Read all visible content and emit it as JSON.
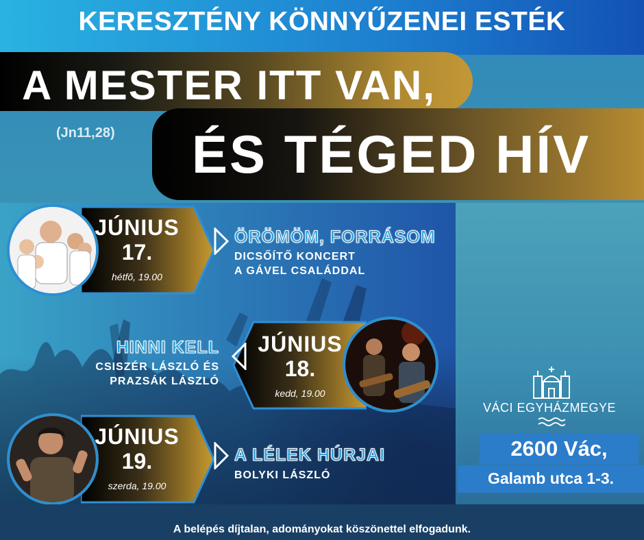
{
  "header": {
    "series_title": "KERESZTÉNY KÖNNYŰZENEI ESTÉK",
    "title_line1": "A MESTER ITT VAN,",
    "title_line2": "ÉS TÉGED HÍV",
    "scripture_ref": "(Jn11,28)"
  },
  "events": [
    {
      "month": "JÚNIUS",
      "day": "17.",
      "time": "hétfő, 19.00",
      "title": "ÖRÖMÖM, FORRÁSOM",
      "subtitle_line1": "DICSŐÍTŐ KONCERT",
      "subtitle_line2": "A GÁVEL CSALÁDDAL"
    },
    {
      "month": "JÚNIUS",
      "day": "18.",
      "time": "kedd, 19.00",
      "title": "HINNI KELL",
      "subtitle_line1": "CSISZÉR LÁSZLÓ ÉS",
      "subtitle_line2": "PRAZSÁK LÁSZLÓ"
    },
    {
      "month": "JÚNIUS",
      "day": "19.",
      "time": "szerda, 19.00",
      "title": "A LÉLEK HÚRJAI",
      "subtitle_line1": "BOLYKI LÁSZLÓ"
    }
  ],
  "organizer": {
    "name": "VÁCI EGYHÁZMEGYE",
    "logo_icon": "cathedral-icon"
  },
  "address": {
    "line1": "2600 Vác,",
    "line2": "Galamb utca 1-3."
  },
  "footer": "A belépés díjtalan, adományokat köszönettel elfogadunk.",
  "colors": {
    "accent_blue": "#2b7cc9",
    "gold": "#b68b31",
    "top_band": "#29b3e2"
  }
}
